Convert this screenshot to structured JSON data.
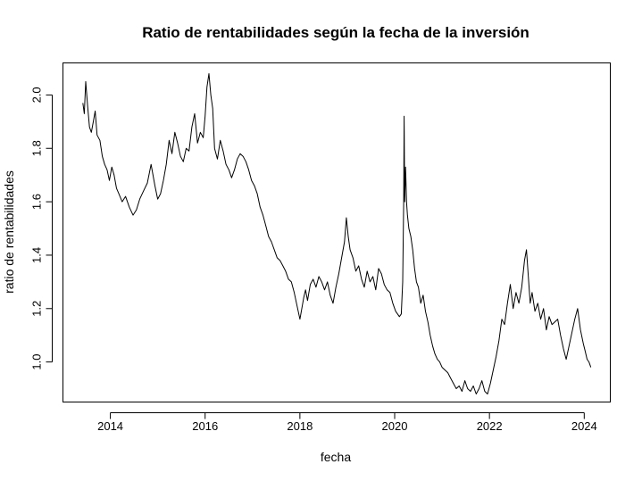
{
  "chart_data": {
    "type": "line",
    "title": "Ratio de rentabilidades según la fecha de la inversión",
    "xlabel": "fecha",
    "ylabel": "ratio de rentabilidades",
    "xlim": [
      2013.0,
      2024.55
    ],
    "ylim": [
      0.85,
      2.12
    ],
    "x_ticks": [
      2014,
      2016,
      2018,
      2020,
      2022,
      2024
    ],
    "x_tick_labels": [
      "2014",
      "2016",
      "2018",
      "2020",
      "2022",
      "2024"
    ],
    "y_ticks": [
      1.0,
      1.2,
      1.4,
      1.6,
      1.8,
      2.0
    ],
    "y_tick_labels": [
      "1.0",
      "1.2",
      "1.4",
      "1.6",
      "1.8",
      "2.0"
    ],
    "grid": false,
    "legend": "none",
    "line_color": "#000000",
    "series": [
      {
        "x": [
          2013.42,
          2013.45,
          2013.48,
          2013.52,
          2013.56,
          2013.6,
          2013.64,
          2013.68,
          2013.72,
          2013.78,
          2013.83,
          2013.88,
          2013.93,
          2013.98,
          2014.03,
          2014.08,
          2014.13,
          2014.18,
          2014.25,
          2014.32,
          2014.4,
          2014.48,
          2014.55,
          2014.62,
          2014.7,
          2014.78,
          2014.86,
          2014.94,
          2015.0,
          2015.06,
          2015.12,
          2015.18,
          2015.24,
          2015.3,
          2015.36,
          2015.42,
          2015.48,
          2015.54,
          2015.6,
          2015.66,
          2015.72,
          2015.78,
          2015.84,
          2015.9,
          2015.96,
          2016.0,
          2016.04,
          2016.08,
          2016.12,
          2016.16,
          2016.2,
          2016.26,
          2016.32,
          2016.38,
          2016.44,
          2016.5,
          2016.56,
          2016.62,
          2016.68,
          2016.74,
          2016.8,
          2016.86,
          2016.92,
          2016.98,
          2017.04,
          2017.1,
          2017.16,
          2017.22,
          2017.28,
          2017.34,
          2017.4,
          2017.46,
          2017.52,
          2017.58,
          2017.64,
          2017.7,
          2017.76,
          2017.82,
          2017.88,
          2017.94,
          2018.0,
          2018.04,
          2018.08,
          2018.12,
          2018.16,
          2018.22,
          2018.28,
          2018.34,
          2018.4,
          2018.46,
          2018.52,
          2018.58,
          2018.64,
          2018.7,
          2018.76,
          2018.82,
          2018.88,
          2018.94,
          2018.98,
          2019.02,
          2019.06,
          2019.12,
          2019.18,
          2019.24,
          2019.3,
          2019.36,
          2019.42,
          2019.48,
          2019.54,
          2019.6,
          2019.66,
          2019.72,
          2019.78,
          2019.84,
          2019.9,
          2019.96,
          2020.02,
          2020.06,
          2020.1,
          2020.14,
          2020.17,
          2020.19,
          2020.2,
          2020.21,
          2020.23,
          2020.25,
          2020.27,
          2020.3,
          2020.34,
          2020.38,
          2020.42,
          2020.46,
          2020.5,
          2020.55,
          2020.6,
          2020.65,
          2020.7,
          2020.75,
          2020.8,
          2020.85,
          2020.9,
          2020.95,
          2021.0,
          2021.06,
          2021.12,
          2021.18,
          2021.24,
          2021.3,
          2021.36,
          2021.42,
          2021.48,
          2021.54,
          2021.6,
          2021.66,
          2021.72,
          2021.78,
          2021.84,
          2021.9,
          2021.96,
          2022.02,
          2022.08,
          2022.14,
          2022.2,
          2022.26,
          2022.32,
          2022.38,
          2022.44,
          2022.5,
          2022.56,
          2022.62,
          2022.68,
          2022.74,
          2022.78,
          2022.82,
          2022.86,
          2022.9,
          2022.96,
          2023.02,
          2023.08,
          2023.14,
          2023.2,
          2023.26,
          2023.32,
          2023.38,
          2023.44,
          2023.5,
          2023.56,
          2023.62,
          2023.68,
          2023.74,
          2023.8,
          2023.86,
          2023.92,
          2023.98,
          2024.02,
          2024.06,
          2024.1,
          2024.14
        ],
        "y": [
          1.97,
          1.93,
          2.05,
          1.96,
          1.88,
          1.86,
          1.9,
          1.94,
          1.85,
          1.83,
          1.77,
          1.74,
          1.72,
          1.68,
          1.73,
          1.7,
          1.65,
          1.63,
          1.6,
          1.62,
          1.58,
          1.55,
          1.57,
          1.61,
          1.64,
          1.67,
          1.74,
          1.66,
          1.61,
          1.63,
          1.68,
          1.74,
          1.83,
          1.78,
          1.86,
          1.82,
          1.77,
          1.75,
          1.8,
          1.79,
          1.88,
          1.93,
          1.82,
          1.86,
          1.84,
          1.92,
          2.03,
          2.08,
          2.0,
          1.95,
          1.8,
          1.76,
          1.83,
          1.79,
          1.74,
          1.72,
          1.69,
          1.72,
          1.76,
          1.78,
          1.77,
          1.75,
          1.72,
          1.68,
          1.66,
          1.63,
          1.58,
          1.55,
          1.51,
          1.47,
          1.45,
          1.42,
          1.39,
          1.38,
          1.36,
          1.34,
          1.31,
          1.3,
          1.26,
          1.21,
          1.16,
          1.2,
          1.24,
          1.27,
          1.23,
          1.29,
          1.31,
          1.28,
          1.32,
          1.3,
          1.27,
          1.3,
          1.25,
          1.22,
          1.28,
          1.33,
          1.39,
          1.45,
          1.54,
          1.47,
          1.42,
          1.39,
          1.34,
          1.36,
          1.31,
          1.28,
          1.34,
          1.3,
          1.32,
          1.27,
          1.35,
          1.33,
          1.29,
          1.27,
          1.26,
          1.22,
          1.19,
          1.18,
          1.17,
          1.18,
          1.3,
          1.6,
          1.92,
          1.6,
          1.73,
          1.6,
          1.55,
          1.5,
          1.47,
          1.42,
          1.35,
          1.3,
          1.28,
          1.22,
          1.25,
          1.19,
          1.15,
          1.1,
          1.06,
          1.03,
          1.01,
          1.0,
          0.98,
          0.97,
          0.96,
          0.94,
          0.92,
          0.9,
          0.91,
          0.89,
          0.93,
          0.9,
          0.89,
          0.91,
          0.88,
          0.9,
          0.93,
          0.89,
          0.88,
          0.92,
          0.97,
          1.02,
          1.08,
          1.16,
          1.14,
          1.22,
          1.29,
          1.2,
          1.26,
          1.22,
          1.28,
          1.38,
          1.42,
          1.32,
          1.22,
          1.26,
          1.19,
          1.22,
          1.16,
          1.2,
          1.12,
          1.17,
          1.14,
          1.15,
          1.16,
          1.1,
          1.05,
          1.01,
          1.06,
          1.11,
          1.16,
          1.2,
          1.12,
          1.07,
          1.04,
          1.01,
          1.0,
          0.98
        ]
      }
    ]
  }
}
